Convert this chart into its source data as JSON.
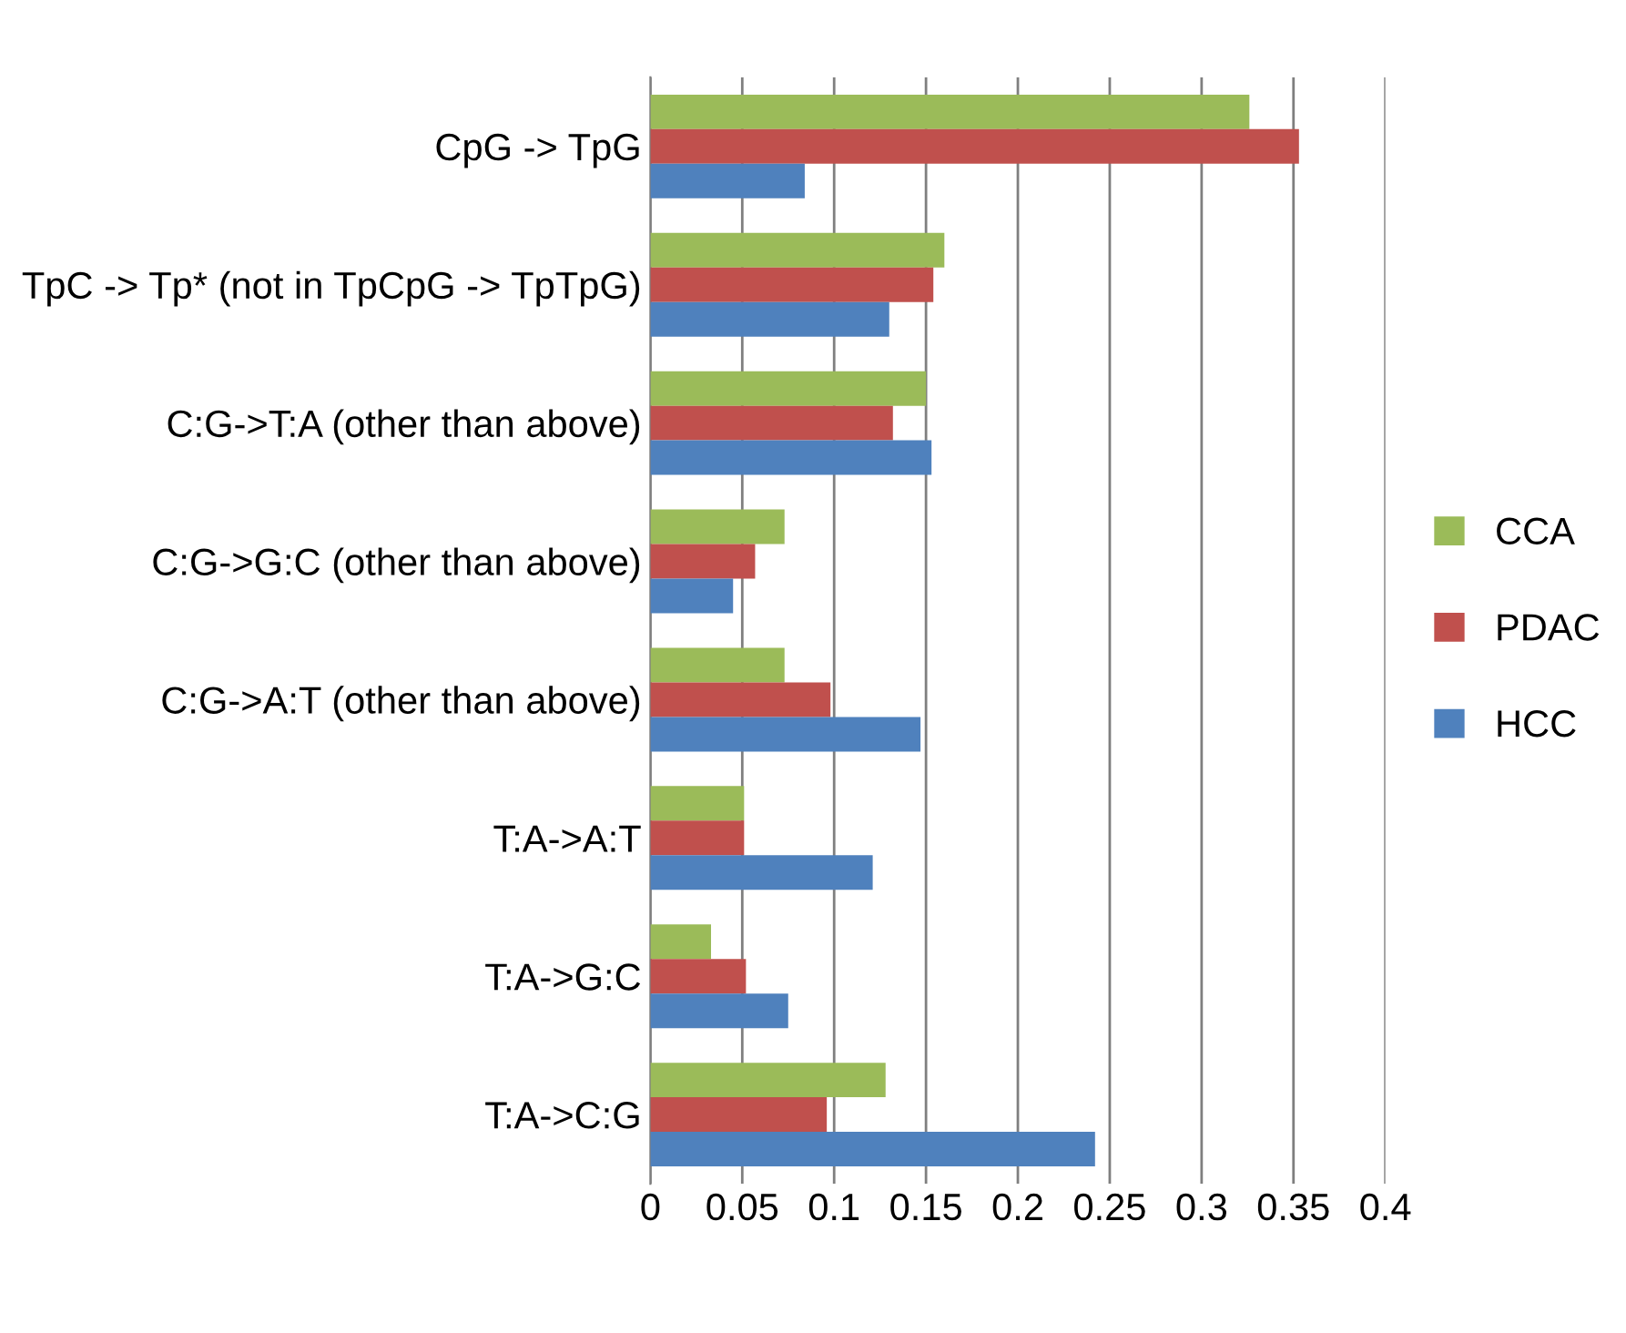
{
  "chart_data": {
    "type": "bar",
    "orientation": "horizontal",
    "categories": [
      "CpG -> TpG",
      "TpC -> Tp* (not in TpCpG -> TpTpG)",
      "C:G->T:A (other than above)",
      "C:G->G:C (other than above)",
      "C:G->A:T (other than above)",
      "T:A->A:T",
      "T:A->G:C",
      "T:A->C:G"
    ],
    "series": [
      {
        "name": "CCA",
        "color": "#9bbb59",
        "values": [
          0.326,
          0.16,
          0.15,
          0.073,
          0.073,
          0.051,
          0.033,
          0.128
        ]
      },
      {
        "name": "PDAC",
        "color": "#c0504d",
        "values": [
          0.353,
          0.154,
          0.132,
          0.057,
          0.098,
          0.051,
          0.052,
          0.096
        ]
      },
      {
        "name": "HCC",
        "color": "#4f81bd",
        "values": [
          0.084,
          0.13,
          0.153,
          0.045,
          0.147,
          0.121,
          0.075,
          0.242
        ]
      }
    ],
    "xlim": [
      0,
      0.4
    ],
    "xticks": [
      0,
      0.05,
      0.1,
      0.15,
      0.2,
      0.25,
      0.3,
      0.35,
      0.4
    ],
    "grid": "x",
    "legend": "right"
  }
}
